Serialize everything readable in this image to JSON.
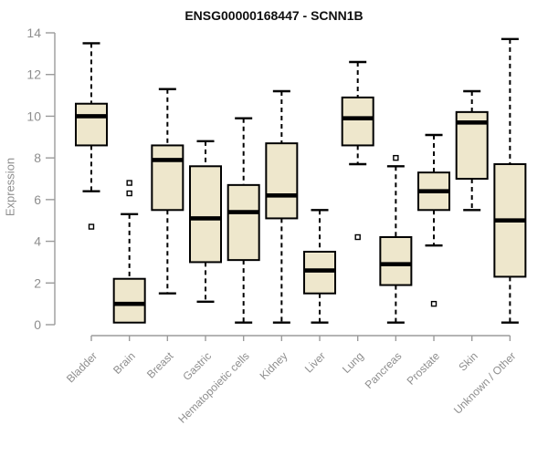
{
  "chart_data": {
    "type": "boxplot",
    "title": "ENSG00000168447 - SCNN1B",
    "ylabel": "Expression",
    "xlabel": "",
    "ylim": [
      0,
      14
    ],
    "yticks": [
      0,
      2,
      4,
      6,
      8,
      10,
      12,
      14
    ],
    "grid": false,
    "legend": "none",
    "categories": [
      "Bladder",
      "Brain",
      "Breast",
      "Gastric",
      "Hematopoietic cells",
      "Kidney",
      "Liver",
      "Lung",
      "Pancreas",
      "Prostate",
      "Skin",
      "Unknown / Other"
    ],
    "series": [
      {
        "category": "Bladder",
        "min": 6.4,
        "q1": 8.6,
        "median": 10.0,
        "q3": 10.6,
        "max": 13.5,
        "outliers": [
          4.7
        ]
      },
      {
        "category": "Brain",
        "min": 0.1,
        "q1": 0.1,
        "median": 1.0,
        "q3": 2.2,
        "max": 5.3,
        "outliers": [
          6.8,
          6.3
        ]
      },
      {
        "category": "Breast",
        "min": 1.5,
        "q1": 5.5,
        "median": 7.9,
        "q3": 8.6,
        "max": 11.3,
        "outliers": []
      },
      {
        "category": "Gastric",
        "min": 1.1,
        "q1": 3.0,
        "median": 5.1,
        "q3": 7.6,
        "max": 8.8,
        "outliers": []
      },
      {
        "category": "Hematopoietic cells",
        "min": 0.1,
        "q1": 3.1,
        "median": 5.4,
        "q3": 6.7,
        "max": 9.9,
        "outliers": []
      },
      {
        "category": "Kidney",
        "min": 0.1,
        "q1": 5.1,
        "median": 6.2,
        "q3": 8.7,
        "max": 11.2,
        "outliers": []
      },
      {
        "category": "Liver",
        "min": 0.1,
        "q1": 1.5,
        "median": 2.6,
        "q3": 3.5,
        "max": 5.5,
        "outliers": []
      },
      {
        "category": "Lung",
        "min": 7.7,
        "q1": 8.6,
        "median": 9.9,
        "q3": 10.9,
        "max": 12.6,
        "outliers": [
          4.2
        ]
      },
      {
        "category": "Pancreas",
        "min": 0.1,
        "q1": 1.9,
        "median": 2.9,
        "q3": 4.2,
        "max": 7.6,
        "outliers": [
          8.0
        ]
      },
      {
        "category": "Prostate",
        "min": 3.8,
        "q1": 5.5,
        "median": 6.4,
        "q3": 7.3,
        "max": 9.1,
        "outliers": [
          1.0
        ]
      },
      {
        "category": "Skin",
        "min": 5.5,
        "q1": 7.0,
        "median": 9.7,
        "q3": 10.2,
        "max": 11.2,
        "outliers": []
      },
      {
        "category": "Unknown / Other",
        "min": 0.1,
        "q1": 2.3,
        "median": 5.0,
        "q3": 7.7,
        "max": 13.7,
        "outliers": []
      }
    ],
    "style": {
      "box_fill": "#EEE7CC",
      "box_stroke": "#000000",
      "median_color": "#000000",
      "whisker_color": "#000000",
      "axis_color": "#9b9b9b",
      "tick_label_color": "#8e8e8e",
      "title_color": "#0f0f0f",
      "background": "#ffffff"
    }
  }
}
